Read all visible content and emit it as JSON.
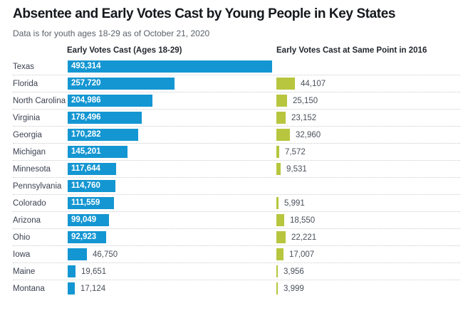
{
  "header": {
    "title": "Absentee and Early Votes Cast by Young People in Key States",
    "subtitle": "Data is for youth ages 18-29 as of October 21, 2020"
  },
  "columns": {
    "left": "Early Votes Cast (Ages 18-29)",
    "right": "Early Votes Cast at Same Point in 2016"
  },
  "colors": {
    "bar_2020": "#1496d2",
    "bar_2016": "#b7c63e",
    "value_text_inside": "#ffffff",
    "value_text_outside": "#4a505a",
    "separator": "#c9cbcd"
  },
  "chart_data": {
    "type": "bar",
    "orientation": "horizontal",
    "title": "Absentee and Early Votes Cast by Young People in Key States",
    "subtitle": "Data is for youth ages 18-29 as of October 21, 2020",
    "grid": "dotted row separators",
    "legend_position": "column headers above each bar group",
    "x_max_scale": 493314,
    "series": [
      {
        "name": "Early Votes Cast (Ages 18-29)",
        "color": "#1496d2"
      },
      {
        "name": "Early Votes Cast at Same Point in 2016",
        "color": "#b7c63e"
      }
    ],
    "rows": [
      {
        "state": "Texas",
        "value_2020": 493314,
        "label_2020": "493,314",
        "value_2016": null,
        "label_2016": null
      },
      {
        "state": "Florida",
        "value_2020": 257720,
        "label_2020": "257,720",
        "value_2016": 44107,
        "label_2016": "44,107"
      },
      {
        "state": "North Carolina",
        "value_2020": 204986,
        "label_2020": "204,986",
        "value_2016": 25150,
        "label_2016": "25,150"
      },
      {
        "state": "Virginia",
        "value_2020": 178496,
        "label_2020": "178,496",
        "value_2016": 23152,
        "label_2016": "23,152"
      },
      {
        "state": "Georgia",
        "value_2020": 170282,
        "label_2020": "170,282",
        "value_2016": 32960,
        "label_2016": "32,960"
      },
      {
        "state": "Michigan",
        "value_2020": 145201,
        "label_2020": "145,201",
        "value_2016": 7572,
        "label_2016": "7,572"
      },
      {
        "state": "Minnesota",
        "value_2020": 117644,
        "label_2020": "117,644",
        "value_2016": 9531,
        "label_2016": "9,531"
      },
      {
        "state": "Pennsylvania",
        "value_2020": 114760,
        "label_2020": "114,760",
        "value_2016": null,
        "label_2016": null
      },
      {
        "state": "Colorado",
        "value_2020": 111559,
        "label_2020": "111,559",
        "value_2016": 5991,
        "label_2016": "5,991"
      },
      {
        "state": "Arizona",
        "value_2020": 99049,
        "label_2020": "99,049",
        "value_2016": 18550,
        "label_2016": "18,550"
      },
      {
        "state": "Ohio",
        "value_2020": 92923,
        "label_2020": "92,923",
        "value_2016": 22221,
        "label_2016": "22,221"
      },
      {
        "state": "Iowa",
        "value_2020": 46750,
        "label_2020": "46,750",
        "value_2016": 17007,
        "label_2016": "17,007"
      },
      {
        "state": "Maine",
        "value_2020": 19651,
        "label_2020": "19,651",
        "value_2016": 3956,
        "label_2016": "3,956"
      },
      {
        "state": "Montana",
        "value_2020": 17124,
        "label_2020": "17,124",
        "value_2016": 3999,
        "label_2016": "3,999"
      }
    ]
  }
}
